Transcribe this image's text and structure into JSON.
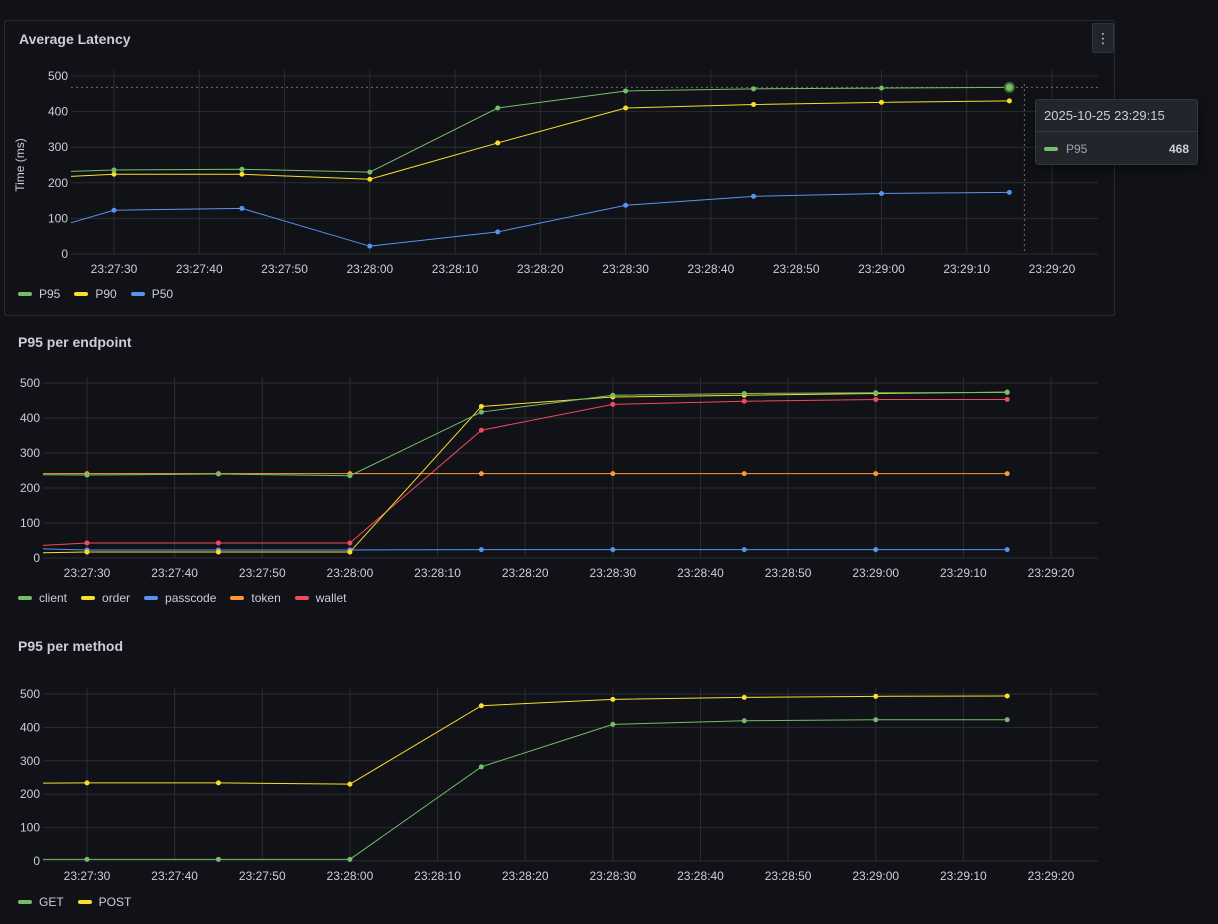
{
  "panels": [
    {
      "title": "Average Latency",
      "menu_icon": "kebab-menu-icon",
      "chart_data": {
        "type": "line",
        "ylabel": "Time (ms)",
        "ylim": [
          0,
          500
        ],
        "yticks": [
          "0",
          "100",
          "200",
          "300",
          "400",
          "500"
        ],
        "xticks": [
          "23:27:30",
          "23:27:40",
          "23:27:50",
          "23:28:00",
          "23:28:10",
          "23:28:20",
          "23:28:30",
          "23:28:40",
          "23:28:50",
          "23:29:00",
          "23:29:10",
          "23:29:20"
        ],
        "x": [
          "23:27:30",
          "23:27:45",
          "23:28:00",
          "23:28:15",
          "23:28:30",
          "23:28:45",
          "23:29:00",
          "23:29:15"
        ],
        "series": [
          {
            "name": "P95",
            "color": "#73bf69",
            "values": [
              236,
              238,
              230,
              410,
              458,
              464,
              466,
              468
            ],
            "start": 232
          },
          {
            "name": "P90",
            "color": "#fade2a",
            "values": [
              224,
              224,
              210,
              312,
              410,
              420,
              426,
              430
            ],
            "start": 218
          },
          {
            "name": "P50",
            "color": "#5794f2",
            "values": [
              123,
              128,
              22,
              62,
              137,
              162,
              170,
              173
            ],
            "start": 88
          }
        ],
        "crosshair_x": "23:29:15",
        "crosshair_y": 468
      }
    },
    {
      "title": "P95 per endpoint",
      "chart_data": {
        "type": "line",
        "ylim": [
          0,
          500
        ],
        "yticks": [
          "0",
          "100",
          "200",
          "300",
          "400",
          "500"
        ],
        "xticks": [
          "23:27:30",
          "23:27:40",
          "23:27:50",
          "23:28:00",
          "23:28:10",
          "23:28:20",
          "23:28:30",
          "23:28:40",
          "23:28:50",
          "23:29:00",
          "23:29:10",
          "23:29:20"
        ],
        "x": [
          "23:27:30",
          "23:27:45",
          "23:28:00",
          "23:28:15",
          "23:28:30",
          "23:28:45",
          "23:29:00",
          "23:29:15"
        ],
        "series": [
          {
            "name": "client",
            "color": "#73bf69",
            "values": [
              237,
              240,
              235,
              417,
              465,
              470,
              472,
              473
            ],
            "start": 238
          },
          {
            "name": "order",
            "color": "#fade2a",
            "values": [
              17,
              17,
              17,
              433,
              460,
              465,
              470,
              474
            ],
            "start": 15
          },
          {
            "name": "passcode",
            "color": "#5794f2",
            "values": [
              23,
              23,
              23,
              24,
              24,
              24,
              24,
              24
            ],
            "start": 26
          },
          {
            "name": "token",
            "color": "#ff9830",
            "values": [
              241,
              241,
              241,
              241,
              241,
              241,
              241,
              241
            ],
            "start": 241
          },
          {
            "name": "wallet",
            "color": "#f2495c",
            "values": [
              43,
              43,
              43,
              365,
              439,
              448,
              453,
              453
            ],
            "start": 36
          }
        ]
      }
    },
    {
      "title": "P95 per method",
      "chart_data": {
        "type": "line",
        "ylim": [
          0,
          500
        ],
        "yticks": [
          "0",
          "100",
          "200",
          "300",
          "400",
          "500"
        ],
        "xticks": [
          "23:27:30",
          "23:27:40",
          "23:27:50",
          "23:28:00",
          "23:28:10",
          "23:28:20",
          "23:28:30",
          "23:28:40",
          "23:28:50",
          "23:29:00",
          "23:29:10",
          "23:29:20"
        ],
        "x": [
          "23:27:30",
          "23:27:45",
          "23:28:00",
          "23:28:15",
          "23:28:30",
          "23:28:45",
          "23:29:00",
          "23:29:15"
        ],
        "series": [
          {
            "name": "GET",
            "color": "#73bf69",
            "values": [
              5,
              5,
              5,
              282,
              409,
              420,
              423,
              423
            ],
            "start": 5
          },
          {
            "name": "POST",
            "color": "#fade2a",
            "values": [
              234,
              234,
              230,
              465,
              484,
              490,
              493,
              494
            ],
            "start": 233
          }
        ]
      }
    }
  ],
  "tooltip": {
    "timestamp": "2025-10-25 23:29:15",
    "series_name": "P95",
    "value": "468",
    "color": "#73bf69"
  }
}
